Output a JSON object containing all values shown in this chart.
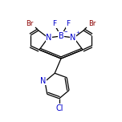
{
  "bg_color": "#ffffff",
  "line_color": "#000000",
  "atom_colors": {
    "Br": "#8B0000",
    "N": "#0000CC",
    "B": "#0000CC",
    "F": "#0000CC",
    "Cl": "#0000CC",
    "C": "#000000"
  },
  "figsize": [
    1.52,
    1.52
  ],
  "dpi": 100,
  "lw": 0.9
}
